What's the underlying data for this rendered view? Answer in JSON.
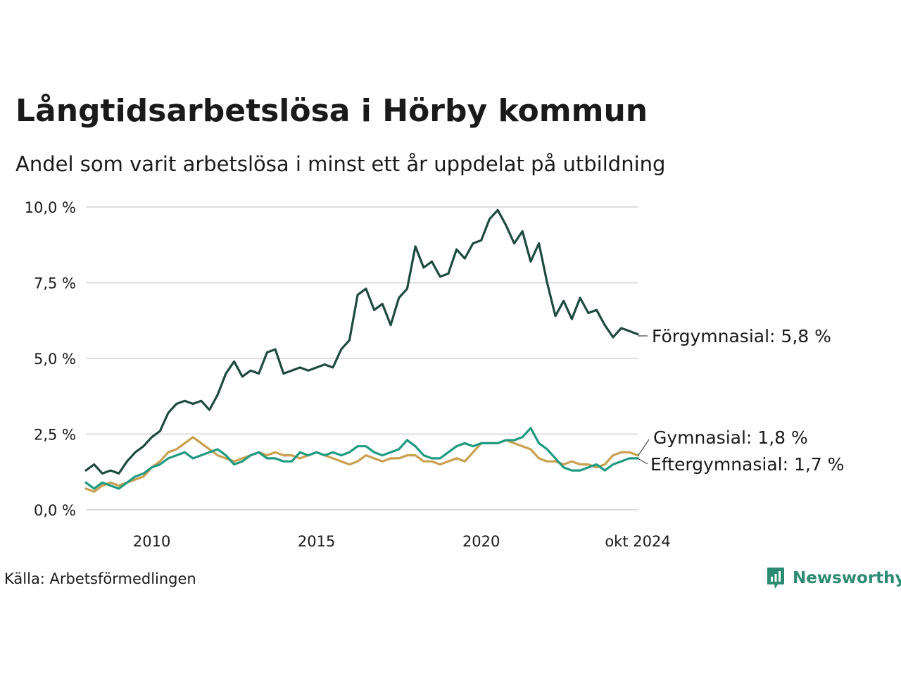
{
  "title": "Långtidsarbetslösa i Hörby kommun",
  "subtitle": "Andel som varit arbetslösa i minst ett år uppdelat på utbildning",
  "source": "Källa: Arbetsförmedlingen",
  "brand": {
    "name": "Newsworthy",
    "icon": "newsworthy-logo-icon",
    "color": "#2e8b73"
  },
  "chart_data": {
    "type": "line",
    "title": "Långtidsarbetslösa i Hörby kommun",
    "subtitle": "Andel som varit arbetslösa i minst ett år uppdelat på utbildning",
    "xlim": [
      "2008-01",
      "2024-10"
    ],
    "ylim": [
      0,
      10
    ],
    "y_ticks": [
      0,
      2.5,
      5,
      7.5,
      10
    ],
    "y_tick_labels": [
      "0,0 %",
      "2,5 %",
      "5,0 %",
      "7,5 %",
      "10,0 %"
    ],
    "x_ticks": [
      "2010-01",
      "2015-01",
      "2020-01",
      "2024-10"
    ],
    "x_tick_labels": [
      "2010",
      "2015",
      "2020",
      "okt 2024"
    ],
    "grid": "horizontal",
    "series": [
      {
        "name": "Förgymnasial",
        "end_label": "Förgymnasial: 5,8 %",
        "color": "#1f4a40",
        "points": [
          [
            "2008-01",
            1.3
          ],
          [
            "2008-04",
            1.5
          ],
          [
            "2008-07",
            1.2
          ],
          [
            "2008-10",
            1.3
          ],
          [
            "2009-01",
            1.2
          ],
          [
            "2009-04",
            1.6
          ],
          [
            "2009-07",
            1.9
          ],
          [
            "2009-10",
            2.1
          ],
          [
            "2010-01",
            2.4
          ],
          [
            "2010-04",
            2.6
          ],
          [
            "2010-07",
            3.2
          ],
          [
            "2010-10",
            3.5
          ],
          [
            "2011-01",
            3.6
          ],
          [
            "2011-04",
            3.5
          ],
          [
            "2011-07",
            3.6
          ],
          [
            "2011-10",
            3.3
          ],
          [
            "2012-01",
            3.8
          ],
          [
            "2012-04",
            4.5
          ],
          [
            "2012-07",
            4.9
          ],
          [
            "2012-10",
            4.4
          ],
          [
            "2013-01",
            4.6
          ],
          [
            "2013-04",
            4.5
          ],
          [
            "2013-07",
            5.2
          ],
          [
            "2013-10",
            5.3
          ],
          [
            "2014-01",
            4.5
          ],
          [
            "2014-04",
            4.6
          ],
          [
            "2014-07",
            4.7
          ],
          [
            "2014-10",
            4.6
          ],
          [
            "2015-01",
            4.7
          ],
          [
            "2015-04",
            4.8
          ],
          [
            "2015-07",
            4.7
          ],
          [
            "2015-10",
            5.3
          ],
          [
            "2016-01",
            5.6
          ],
          [
            "2016-04",
            7.1
          ],
          [
            "2016-07",
            7.3
          ],
          [
            "2016-10",
            6.6
          ],
          [
            "2017-01",
            6.8
          ],
          [
            "2017-04",
            6.1
          ],
          [
            "2017-07",
            7.0
          ],
          [
            "2017-10",
            7.3
          ],
          [
            "2018-01",
            8.7
          ],
          [
            "2018-04",
            8.0
          ],
          [
            "2018-07",
            8.2
          ],
          [
            "2018-10",
            7.7
          ],
          [
            "2019-01",
            7.8
          ],
          [
            "2019-04",
            8.6
          ],
          [
            "2019-07",
            8.3
          ],
          [
            "2019-10",
            8.8
          ],
          [
            "2020-01",
            8.9
          ],
          [
            "2020-04",
            9.6
          ],
          [
            "2020-07",
            9.9
          ],
          [
            "2020-10",
            9.4
          ],
          [
            "2021-01",
            8.8
          ],
          [
            "2021-04",
            9.2
          ],
          [
            "2021-07",
            8.2
          ],
          [
            "2021-10",
            8.8
          ],
          [
            "2022-01",
            7.5
          ],
          [
            "2022-04",
            6.4
          ],
          [
            "2022-07",
            6.9
          ],
          [
            "2022-10",
            6.3
          ],
          [
            "2023-01",
            7.0
          ],
          [
            "2023-04",
            6.5
          ],
          [
            "2023-07",
            6.6
          ],
          [
            "2023-10",
            6.1
          ],
          [
            "2024-01",
            5.7
          ],
          [
            "2024-04",
            6.0
          ],
          [
            "2024-07",
            5.9
          ],
          [
            "2024-10",
            5.8
          ]
        ]
      },
      {
        "name": "Gymnasial",
        "end_label": "Gymnasial: 1,8 %",
        "color": "#c9a050",
        "points": [
          [
            "2008-01",
            0.7
          ],
          [
            "2008-04",
            0.6
          ],
          [
            "2008-07",
            0.8
          ],
          [
            "2008-10",
            0.9
          ],
          [
            "2009-01",
            0.8
          ],
          [
            "2009-04",
            0.9
          ],
          [
            "2009-07",
            1.0
          ],
          [
            "2009-10",
            1.1
          ],
          [
            "2010-01",
            1.4
          ],
          [
            "2010-04",
            1.6
          ],
          [
            "2010-07",
            1.9
          ],
          [
            "2010-10",
            2.0
          ],
          [
            "2011-01",
            2.2
          ],
          [
            "2011-04",
            2.4
          ],
          [
            "2011-07",
            2.2
          ],
          [
            "2011-10",
            2.0
          ],
          [
            "2012-01",
            1.8
          ],
          [
            "2012-04",
            1.7
          ],
          [
            "2012-07",
            1.6
          ],
          [
            "2012-10",
            1.7
          ],
          [
            "2013-01",
            1.8
          ],
          [
            "2013-04",
            1.9
          ],
          [
            "2013-07",
            1.8
          ],
          [
            "2013-10",
            1.9
          ],
          [
            "2014-01",
            1.8
          ],
          [
            "2014-04",
            1.8
          ],
          [
            "2014-07",
            1.7
          ],
          [
            "2014-10",
            1.8
          ],
          [
            "2015-01",
            1.9
          ],
          [
            "2015-04",
            1.8
          ],
          [
            "2015-07",
            1.7
          ],
          [
            "2015-10",
            1.6
          ],
          [
            "2016-01",
            1.5
          ],
          [
            "2016-04",
            1.6
          ],
          [
            "2016-07",
            1.8
          ],
          [
            "2016-10",
            1.7
          ],
          [
            "2017-01",
            1.6
          ],
          [
            "2017-04",
            1.7
          ],
          [
            "2017-07",
            1.7
          ],
          [
            "2017-10",
            1.8
          ],
          [
            "2018-01",
            1.8
          ],
          [
            "2018-04",
            1.6
          ],
          [
            "2018-07",
            1.6
          ],
          [
            "2018-10",
            1.5
          ],
          [
            "2019-01",
            1.6
          ],
          [
            "2019-04",
            1.7
          ],
          [
            "2019-07",
            1.6
          ],
          [
            "2019-10",
            1.9
          ],
          [
            "2020-01",
            2.2
          ],
          [
            "2020-04",
            2.2
          ],
          [
            "2020-07",
            2.2
          ],
          [
            "2020-10",
            2.3
          ],
          [
            "2021-01",
            2.2
          ],
          [
            "2021-04",
            2.1
          ],
          [
            "2021-07",
            2.0
          ],
          [
            "2021-10",
            1.7
          ],
          [
            "2022-01",
            1.6
          ],
          [
            "2022-04",
            1.6
          ],
          [
            "2022-07",
            1.5
          ],
          [
            "2022-10",
            1.6
          ],
          [
            "2023-01",
            1.5
          ],
          [
            "2023-04",
            1.5
          ],
          [
            "2023-07",
            1.4
          ],
          [
            "2023-10",
            1.5
          ],
          [
            "2024-01",
            1.8
          ],
          [
            "2024-04",
            1.9
          ],
          [
            "2024-07",
            1.9
          ],
          [
            "2024-10",
            1.8
          ]
        ]
      },
      {
        "name": "Eftergymnasial",
        "end_label": "Eftergymnasial: 1,7 %",
        "color": "#1f9a82",
        "points": [
          [
            "2008-01",
            0.9
          ],
          [
            "2008-04",
            0.7
          ],
          [
            "2008-07",
            0.9
          ],
          [
            "2008-10",
            0.8
          ],
          [
            "2009-01",
            0.7
          ],
          [
            "2009-04",
            0.9
          ],
          [
            "2009-07",
            1.1
          ],
          [
            "2009-10",
            1.2
          ],
          [
            "2010-01",
            1.4
          ],
          [
            "2010-04",
            1.5
          ],
          [
            "2010-07",
            1.7
          ],
          [
            "2010-10",
            1.8
          ],
          [
            "2011-01",
            1.9
          ],
          [
            "2011-04",
            1.7
          ],
          [
            "2011-07",
            1.8
          ],
          [
            "2011-10",
            1.9
          ],
          [
            "2012-01",
            2.0
          ],
          [
            "2012-04",
            1.8
          ],
          [
            "2012-07",
            1.5
          ],
          [
            "2012-10",
            1.6
          ],
          [
            "2013-01",
            1.8
          ],
          [
            "2013-04",
            1.9
          ],
          [
            "2013-07",
            1.7
          ],
          [
            "2013-10",
            1.7
          ],
          [
            "2014-01",
            1.6
          ],
          [
            "2014-04",
            1.6
          ],
          [
            "2014-07",
            1.9
          ],
          [
            "2014-10",
            1.8
          ],
          [
            "2015-01",
            1.9
          ],
          [
            "2015-04",
            1.8
          ],
          [
            "2015-07",
            1.9
          ],
          [
            "2015-10",
            1.8
          ],
          [
            "2016-01",
            1.9
          ],
          [
            "2016-04",
            2.1
          ],
          [
            "2016-07",
            2.1
          ],
          [
            "2016-10",
            1.9
          ],
          [
            "2017-01",
            1.8
          ],
          [
            "2017-04",
            1.9
          ],
          [
            "2017-07",
            2.0
          ],
          [
            "2017-10",
            2.3
          ],
          [
            "2018-01",
            2.1
          ],
          [
            "2018-04",
            1.8
          ],
          [
            "2018-07",
            1.7
          ],
          [
            "2018-10",
            1.7
          ],
          [
            "2019-01",
            1.9
          ],
          [
            "2019-04",
            2.1
          ],
          [
            "2019-07",
            2.2
          ],
          [
            "2019-10",
            2.1
          ],
          [
            "2020-01",
            2.2
          ],
          [
            "2020-04",
            2.2
          ],
          [
            "2020-07",
            2.2
          ],
          [
            "2020-10",
            2.3
          ],
          [
            "2021-01",
            2.3
          ],
          [
            "2021-04",
            2.4
          ],
          [
            "2021-07",
            2.7
          ],
          [
            "2021-10",
            2.2
          ],
          [
            "2022-01",
            2.0
          ],
          [
            "2022-04",
            1.7
          ],
          [
            "2022-07",
            1.4
          ],
          [
            "2022-10",
            1.3
          ],
          [
            "2023-01",
            1.3
          ],
          [
            "2023-04",
            1.4
          ],
          [
            "2023-07",
            1.5
          ],
          [
            "2023-10",
            1.3
          ],
          [
            "2024-01",
            1.5
          ],
          [
            "2024-04",
            1.6
          ],
          [
            "2024-07",
            1.7
          ],
          [
            "2024-10",
            1.7
          ]
        ]
      }
    ]
  }
}
